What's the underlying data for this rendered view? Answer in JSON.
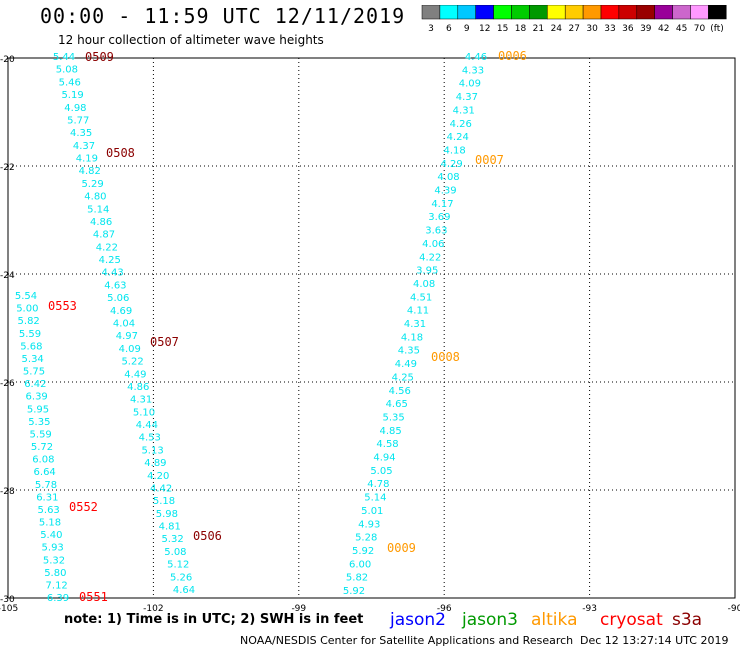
{
  "header": {
    "title": "00:00 - 11:59 UTC 12/11/2019",
    "subtitle": "12 hour collection of altimeter wave heights"
  },
  "legend": {
    "unit": "(ft)",
    "bins": [
      {
        "label": "3",
        "color": "#808080"
      },
      {
        "label": "6",
        "color": "#00ffff"
      },
      {
        "label": "9",
        "color": "#00c8ff"
      },
      {
        "label": "12",
        "color": "#0000ff"
      },
      {
        "label": "15",
        "color": "#00ff00"
      },
      {
        "label": "18",
        "color": "#00cc00"
      },
      {
        "label": "21",
        "color": "#009900"
      },
      {
        "label": "24",
        "color": "#ffff00"
      },
      {
        "label": "27",
        "color": "#ffcc00"
      },
      {
        "label": "30",
        "color": "#ff9900"
      },
      {
        "label": "33",
        "color": "#ff0000"
      },
      {
        "label": "36",
        "color": "#cc0000"
      },
      {
        "label": "39",
        "color": "#990000"
      },
      {
        "label": "42",
        "color": "#990099"
      },
      {
        "label": "45",
        "color": "#cc66cc"
      },
      {
        "label": "70",
        "color": "#ff99ff"
      },
      {
        "label": "",
        "color": "#000000"
      }
    ]
  },
  "map": {
    "lon_ticks": [
      "-105",
      "-102",
      "-99",
      "-96",
      "-93",
      "-90"
    ],
    "lat_ticks": [
      "-20",
      "-22",
      "-24",
      "-26",
      "-28",
      "-30"
    ]
  },
  "tracks": [
    {
      "name": "cryosat-west",
      "color": "#00e5ee",
      "values": [
        "5.54",
        "5.00",
        "5.82",
        "5.59",
        "5.68",
        "5.34",
        "5.75",
        "6.42",
        "6.39",
        "5.95",
        "5.35",
        "5.59",
        "5.72",
        "6.08",
        "6.64",
        "5.78",
        "6.31",
        "5.63",
        "5.18",
        "5.40",
        "5.93",
        "5.32",
        "5.80",
        "7.12",
        "6.39"
      ]
    },
    {
      "name": "track-507",
      "color": "#00e5ee",
      "values": [
        "5.44",
        "5.08",
        "5.46",
        "5.19",
        "4.98",
        "5.77",
        "4.35",
        "4.37",
        "4.19",
        "4.82",
        "5.29",
        "4.80",
        "5.14",
        "4.86",
        "4.87",
        "4.22",
        "4.25",
        "4.43",
        "4.63",
        "5.06",
        "4.69",
        "4.04",
        "4.97",
        "4.09",
        "5.22",
        "4.49",
        "4.86",
        "4.31",
        "5.10",
        "4.44",
        "4.53",
        "5.13",
        "4.89",
        "4.20",
        "4.42",
        "5.18",
        "5.98",
        "4.81",
        "5.32",
        "5.08",
        "5.12",
        "5.26",
        "4.64"
      ]
    },
    {
      "name": "track-east",
      "color": "#00e5ee",
      "values": [
        "4.46",
        "4.33",
        "4.09",
        "4.37",
        "4.31",
        "4.26",
        "4.24",
        "4.18",
        "4.29",
        "4.08",
        "4.39",
        "4.17",
        "3.69",
        "3.63",
        "4.06",
        "4.22",
        "3.95",
        "4.08",
        "4.51",
        "4.11",
        "4.31",
        "4.18",
        "4.35",
        "4.49",
        "4.25",
        "4.56",
        "4.65",
        "5.35",
        "4.85",
        "4.58",
        "4.94",
        "5.05",
        "4.78",
        "5.14",
        "5.01",
        "4.93",
        "5.28",
        "5.92",
        "6.00",
        "5.82",
        "5.92"
      ]
    }
  ],
  "time_labels": [
    {
      "text": "0509",
      "color": "#8b0000"
    },
    {
      "text": "0508",
      "color": "#8b0000"
    },
    {
      "text": "0507",
      "color": "#8b0000"
    },
    {
      "text": "0506",
      "color": "#8b0000"
    },
    {
      "text": "0553",
      "color": "#ff0000"
    },
    {
      "text": "0552",
      "color": "#ff0000"
    },
    {
      "text": "0551",
      "color": "#ff0000"
    },
    {
      "text": "0006",
      "color": "#ff9900"
    },
    {
      "text": "0007",
      "color": "#ff9900"
    },
    {
      "text": "0008",
      "color": "#ff9900"
    },
    {
      "text": "0009",
      "color": "#ff9900"
    }
  ],
  "footer": {
    "note": "note: 1) Time is in UTC; 2) SWH is in feet",
    "satellites": [
      {
        "name": "jason2",
        "color": "#0000ff"
      },
      {
        "name": "jason3",
        "color": "#009900"
      },
      {
        "name": "altika",
        "color": "#ff9900"
      },
      {
        "name": "cryosat",
        "color": "#ff0000"
      },
      {
        "name": "s3a",
        "color": "#8b0000"
      }
    ],
    "credit": "NOAA/NESDIS Center for Satellite Applications and Research",
    "stamp": "Dec 12 13:27:14 UTC 2019"
  }
}
